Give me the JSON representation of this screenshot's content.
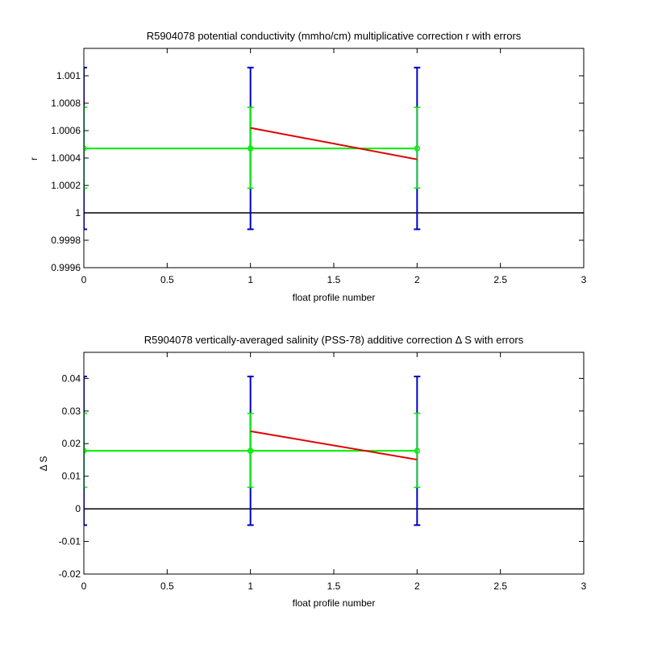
{
  "chart_data": [
    {
      "type": "line",
      "title": "R5904078 potential conductivity (mmho/cm) multiplicative correction r with errors",
      "xlabel": "float profile number",
      "ylabel": "r",
      "xlim": [
        0,
        3
      ],
      "ylim": [
        0.9996,
        1.0012
      ],
      "xticks": [
        "0",
        "0.5",
        "1",
        "1.5",
        "2",
        "2.5",
        "3"
      ],
      "xtick_values": [
        0,
        0.5,
        1,
        1.5,
        2,
        2.5,
        3
      ],
      "yticks": [
        "0.9996",
        "0.9998",
        "1",
        "1.0002",
        "1.0004",
        "1.0006",
        "1.0008",
        "1.001"
      ],
      "ytick_values": [
        0.9996,
        0.9998,
        1.0,
        1.0002,
        1.0004,
        1.0006,
        1.0008,
        1.001
      ],
      "grid": false,
      "series": [
        {
          "role": "reference",
          "color": "#000000",
          "x": [
            0,
            3
          ],
          "y": [
            1.0,
            1.0
          ]
        },
        {
          "role": "errorbar",
          "color": "#0000cc",
          "x": [
            0,
            1,
            2
          ],
          "y": [
            1.00047,
            1.00047,
            1.00047
          ],
          "lower": [
            0.99988,
            0.99988,
            0.99988
          ],
          "upper": [
            1.00106,
            1.00106,
            1.00106
          ]
        },
        {
          "role": "errorbar-line",
          "color": "#00ee00",
          "x": [
            0,
            1,
            2
          ],
          "y": [
            1.00047,
            1.00047,
            1.00047
          ],
          "lower": [
            1.00018,
            1.00018,
            1.00018
          ],
          "upper": [
            1.00077,
            1.00077,
            1.00077
          ]
        },
        {
          "role": "fit",
          "color": "#e00000",
          "x": [
            1,
            2
          ],
          "y": [
            1.00062,
            1.00039
          ]
        }
      ]
    },
    {
      "type": "line",
      "title": "R5904078 vertically-averaged salinity (PSS-78) additive correction Δ S with errors",
      "xlabel": "float profile number",
      "ylabel": "Δ S",
      "xlim": [
        0,
        3
      ],
      "ylim": [
        -0.02,
        0.048
      ],
      "xticks": [
        "0",
        "0.5",
        "1",
        "1.5",
        "2",
        "2.5",
        "3"
      ],
      "xtick_values": [
        0,
        0.5,
        1,
        1.5,
        2,
        2.5,
        3
      ],
      "yticks": [
        "-0.02",
        "-0.01",
        "0",
        "0.01",
        "0.02",
        "0.03",
        "0.04"
      ],
      "ytick_values": [
        -0.02,
        -0.01,
        0,
        0.01,
        0.02,
        0.03,
        0.04
      ],
      "grid": false,
      "series": [
        {
          "role": "reference",
          "color": "#000000",
          "x": [
            0,
            3
          ],
          "y": [
            0,
            0
          ]
        },
        {
          "role": "errorbar",
          "color": "#0000cc",
          "x": [
            0,
            1,
            2
          ],
          "y": [
            0.0178,
            0.0178,
            0.0178
          ],
          "lower": [
            -0.005,
            -0.005,
            -0.005
          ],
          "upper": [
            0.0406,
            0.0406,
            0.0406
          ]
        },
        {
          "role": "errorbar-line",
          "color": "#00ee00",
          "x": [
            0,
            1,
            2
          ],
          "y": [
            0.0178,
            0.0178,
            0.0178
          ],
          "lower": [
            0.0066,
            0.0066,
            0.0066
          ],
          "upper": [
            0.0293,
            0.0293,
            0.0293
          ]
        },
        {
          "role": "fit",
          "color": "#e00000",
          "x": [
            1,
            2
          ],
          "y": [
            0.0238,
            0.0151
          ]
        }
      ]
    }
  ]
}
